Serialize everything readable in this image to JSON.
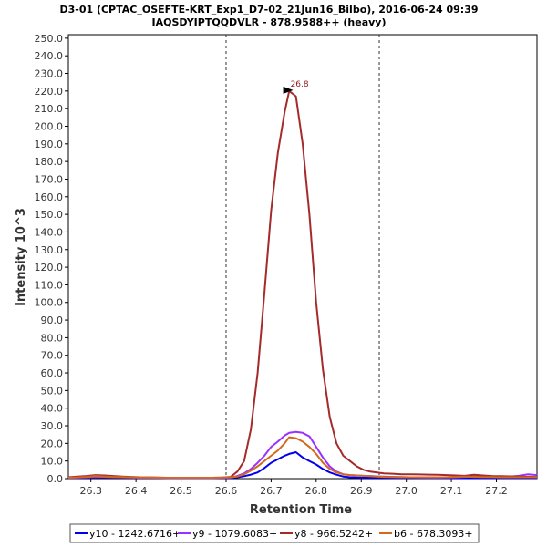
{
  "chart_data": {
    "type": "line",
    "title": "D3-01 (CPTAC_OSEFTE-KRT_Exp1_D7-02_21Jun16_Bilbo), 2016-06-24 09:39",
    "subtitle": "IAQSDYIPTQQDVLR - 878.9588++ (heavy)",
    "xlabel": "Retention Time",
    "ylabel": "Intensity 10^3",
    "xlim": [
      26.25,
      27.29
    ],
    "ylim": [
      0,
      252
    ],
    "x_ticks": [
      "26.3",
      "26.4",
      "26.5",
      "26.6",
      "26.7",
      "26.8",
      "26.9",
      "27.0",
      "27.1",
      "27.2"
    ],
    "y_ticks": [
      "0.0",
      "10.0",
      "20.0",
      "30.0",
      "40.0",
      "50.0",
      "60.0",
      "70.0",
      "80.0",
      "90.0",
      "100.0",
      "110.0",
      "120.0",
      "130.0",
      "140.0",
      "150.0",
      "160.0",
      "170.0",
      "180.0",
      "190.0",
      "200.0",
      "210.0",
      "220.0",
      "230.0",
      "240.0",
      "250.0"
    ],
    "boundary_lines": [
      26.6,
      26.94
    ],
    "peak_annotation": {
      "label": "26.8",
      "x": 26.755,
      "y": 220
    },
    "grid": false,
    "legend_position": "bottom",
    "x": [
      26.25,
      26.27,
      26.29,
      26.31,
      26.33,
      26.35,
      26.37,
      26.39,
      26.41,
      26.43,
      26.45,
      26.47,
      26.49,
      26.51,
      26.53,
      26.55,
      26.57,
      26.59,
      26.61,
      26.625,
      26.64,
      26.655,
      26.67,
      26.685,
      26.7,
      26.715,
      26.73,
      26.74,
      26.755,
      26.77,
      26.785,
      26.8,
      26.815,
      26.83,
      26.845,
      26.86,
      26.875,
      26.89,
      26.905,
      26.92,
      26.935,
      26.95,
      26.97,
      26.99,
      27.01,
      27.03,
      27.05,
      27.07,
      27.09,
      27.11,
      27.13,
      27.15,
      27.17,
      27.19,
      27.21,
      27.23,
      27.25,
      27.27,
      27.29
    ],
    "series": [
      {
        "name": "y10 - 1242.6716+",
        "color": "#0000ee",
        "values": [
          0.3,
          0.4,
          0.5,
          0.8,
          0.7,
          0.6,
          0.6,
          0.5,
          0.4,
          0.4,
          0.3,
          0.3,
          0.3,
          0.3,
          0.3,
          0.3,
          0.3,
          0.3,
          0.4,
          0.8,
          1.4,
          2.3,
          3.5,
          6,
          9,
          11,
          13,
          14,
          15,
          12,
          10,
          8,
          5.5,
          3.5,
          2.2,
          1.2,
          0.8,
          0.6,
          0.5,
          0.5,
          0.5,
          0.5,
          0.4,
          0.4,
          0.4,
          0.4,
          0.3,
          0.3,
          0.3,
          0.3,
          0.3,
          0.3,
          0.3,
          0.3,
          0.3,
          0.3,
          0.3,
          0.3,
          0.3
        ]
      },
      {
        "name": "y9 - 1079.6083+",
        "color": "#9b30ff",
        "values": [
          0.5,
          0.6,
          0.8,
          1,
          0.9,
          0.8,
          0.7,
          0.6,
          0.5,
          0.5,
          0.5,
          0.4,
          0.4,
          0.4,
          0.4,
          0.4,
          0.4,
          0.5,
          0.6,
          1.5,
          3,
          5.5,
          9,
          13,
          18,
          21,
          24.5,
          26,
          26.5,
          26,
          24,
          18,
          12,
          7,
          4,
          2.5,
          2,
          1.8,
          1.6,
          1.5,
          1.3,
          1.2,
          1,
          0.9,
          0.8,
          0.8,
          0.7,
          0.7,
          0.7,
          0.8,
          1,
          1.2,
          1,
          0.9,
          0.9,
          1.2,
          1.6,
          2.5,
          2
        ]
      },
      {
        "name": "y8 - 966.5242+",
        "color": "#a52a2a",
        "values": [
          0.8,
          1.2,
          1.5,
          2,
          1.8,
          1.5,
          1.2,
          1,
          0.8,
          0.7,
          0.6,
          0.5,
          0.5,
          0.5,
          0.5,
          0.5,
          0.5,
          0.6,
          1,
          4,
          10,
          28,
          60,
          105,
          152,
          185,
          208,
          220,
          217,
          190,
          150,
          100,
          62,
          35,
          20,
          13,
          10,
          7,
          5,
          4,
          3.5,
          3,
          2.8,
          2.5,
          2.5,
          2.4,
          2.3,
          2.2,
          2,
          1.8,
          1.6,
          2.2,
          1.8,
          1.5,
          1.4,
          1.3,
          1.2,
          1.1,
          1
        ]
      },
      {
        "name": "b6 - 678.3093+",
        "color": "#d2691e",
        "values": [
          0.5,
          0.7,
          1,
          1.5,
          1.2,
          1,
          0.9,
          0.8,
          0.7,
          0.6,
          0.5,
          0.5,
          0.5,
          0.5,
          0.5,
          0.5,
          0.5,
          0.6,
          0.8,
          1.2,
          2.5,
          4.5,
          7,
          10,
          13,
          16,
          20,
          23.5,
          23,
          21,
          18,
          14,
          9,
          5.5,
          3.5,
          2.5,
          2,
          1.8,
          1.6,
          1.4,
          1.2,
          1,
          0.9,
          0.8,
          0.8,
          0.7,
          0.7,
          0.7,
          0.8,
          1,
          1.2,
          1,
          0.9,
          0.9,
          0.8,
          0.8,
          0.8,
          0.8,
          0.8
        ]
      }
    ]
  }
}
